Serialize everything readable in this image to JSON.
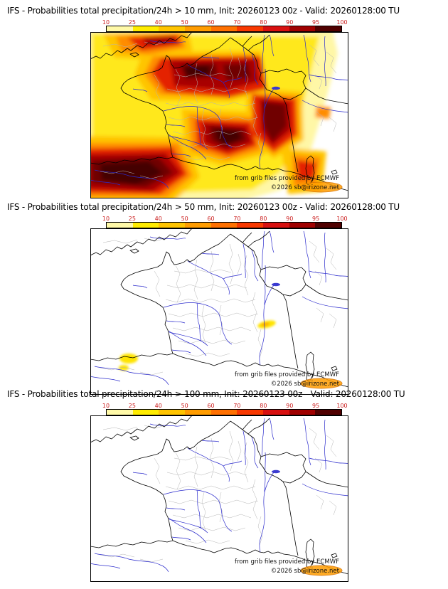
{
  "page": {
    "background": "#ffffff"
  },
  "colorbar": {
    "tick_labels": [
      "10",
      "25",
      "40",
      "50",
      "60",
      "70",
      "80",
      "90",
      "95",
      "100"
    ],
    "segment_colors": [
      "#fff9a8",
      "#ffec00",
      "#ffc400",
      "#ff9c00",
      "#ff7000",
      "#f83800",
      "#d81010",
      "#a00000",
      "#500000"
    ],
    "tick_color": "#cc2020"
  },
  "credits": {
    "source": "from grib files provided by ECMWF",
    "copyright": "©2026 sb@irizone.net"
  },
  "panels": [
    {
      "threshold_mm": 10,
      "title": "IFS - Probabilities total precipitation/24h > 10 mm, Init: 20260123 00z - Valid: 20260128:00 TU"
    },
    {
      "threshold_mm": 50,
      "title": "IFS - Probabilities total precipitation/24h > 50 mm, Init: 20260123 00z - Valid: 20260128:00 TU"
    },
    {
      "threshold_mm": 100,
      "title": "IFS - Probabilities total precipitation/24h > 100 mm, Init: 20260123 00z - Valid: 20260128:00 TU"
    }
  ]
}
